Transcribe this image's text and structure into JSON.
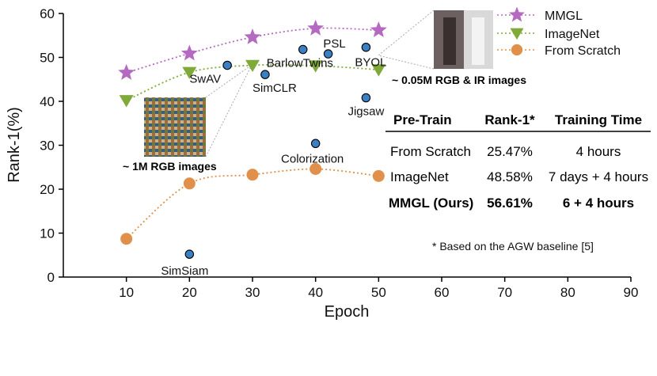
{
  "chart_data": {
    "type": "line",
    "title": "",
    "xlabel": "Epoch",
    "ylabel": "Rank-1(%)",
    "xlim": [
      0,
      90
    ],
    "ylim": [
      0,
      60
    ],
    "xticks": [
      10,
      20,
      30,
      40,
      50,
      60,
      70,
      80,
      90
    ],
    "yticks": [
      0,
      10,
      20,
      30,
      40,
      50,
      60
    ],
    "grid": false,
    "legend_position": "top-right",
    "series": [
      {
        "name": "MMGL",
        "color": "#b36ac0",
        "marker": "star",
        "x": [
          10,
          20,
          30,
          40,
          50
        ],
        "y": [
          46.5,
          50.9,
          54.6,
          56.6,
          56.2
        ]
      },
      {
        "name": "ImageNet",
        "color": "#7faa3a",
        "marker": "triangle-down",
        "x": [
          10,
          20,
          30,
          40,
          50
        ],
        "y": [
          40.2,
          46.6,
          48.2,
          48.1,
          47.2
        ]
      },
      {
        "name": "From Scratch",
        "color": "#e0904a",
        "marker": "circle",
        "x": [
          10,
          20,
          30,
          40,
          50
        ],
        "y": [
          8.7,
          21.3,
          23.3,
          24.6,
          23.0
        ]
      }
    ],
    "methods": [
      {
        "name": "SwAV",
        "x": 26,
        "y": 48.2
      },
      {
        "name": "SimCLR",
        "x": 32,
        "y": 46.1
      },
      {
        "name": "BarlowTwins",
        "x": 38,
        "y": 51.8
      },
      {
        "name": "PSL",
        "x": 42,
        "y": 50.8
      },
      {
        "name": "BYOL",
        "x": 48,
        "y": 52.3
      },
      {
        "name": "Jigsaw",
        "x": 48,
        "y": 40.8
      },
      {
        "name": "Colorization",
        "x": 40,
        "y": 30.4
      },
      {
        "name": "SimSiam",
        "x": 20,
        "y": 5.2
      }
    ],
    "method_color": "#3b7fc4",
    "annotations": {
      "imagenet_data": "~ 1M RGB images",
      "mmgl_data": "~ 0.05M RGB & IR images"
    },
    "table": {
      "headers": [
        "Pre-Train",
        "Rank-1*",
        "Training Time"
      ],
      "rows": [
        [
          "From Scratch",
          "25.47%",
          "4 hours"
        ],
        [
          "ImageNet",
          "48.58%",
          "7 days + 4 hours"
        ],
        [
          "MMGL (Ours)",
          "56.61%",
          "6 + 4 hours"
        ]
      ],
      "footnote": "* Based on the AGW baseline [5]"
    }
  }
}
